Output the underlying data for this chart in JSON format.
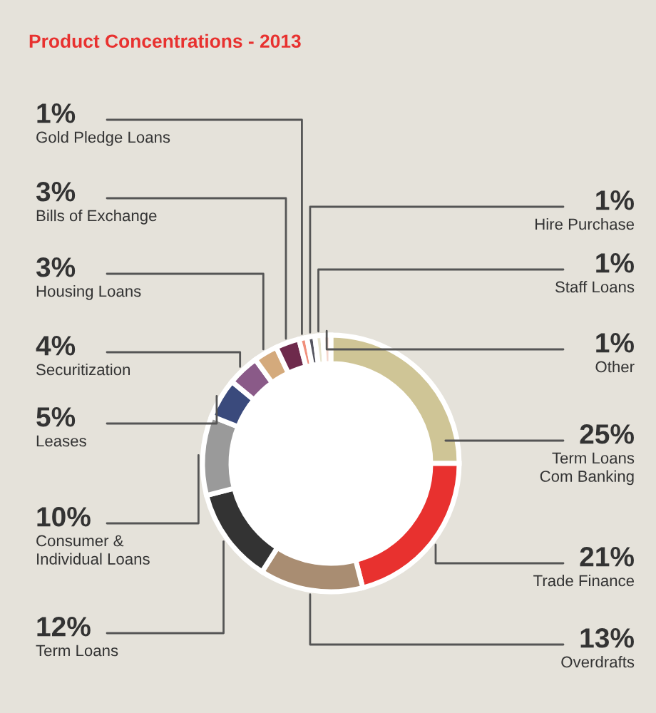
{
  "chart_data": {
    "type": "donut",
    "title": "Product Concentrations - 2013",
    "categories": [
      "Term Loans\nCom Banking",
      "Trade Finance",
      "Overdrafts",
      "Term Loans",
      "Consumer &\nIndividual Loans",
      "Leases",
      "Securitization",
      "Housing Loans",
      "Bills of Exchange",
      "Gold Pledge Loans",
      "Hire Purchase",
      "Staff Loans",
      "Other"
    ],
    "values": [
      25,
      21,
      13,
      12,
      10,
      5,
      4,
      3,
      3,
      1,
      1,
      1,
      1
    ],
    "colors": [
      "#cfc596",
      "#e8312f",
      "#a98d72",
      "#333333",
      "#9a9a9a",
      "#3a4a7c",
      "#8a5a88",
      "#d4aa7c",
      "#6e2a4c",
      "#f0907c",
      "#55555f",
      "#e8e4cc",
      "#f4d6cc"
    ],
    "value_labels": [
      "25%",
      "21%",
      "13%",
      "12%",
      "10%",
      "5%",
      "4%",
      "3%",
      "3%",
      "1%",
      "1%",
      "1%",
      "1%"
    ]
  }
}
